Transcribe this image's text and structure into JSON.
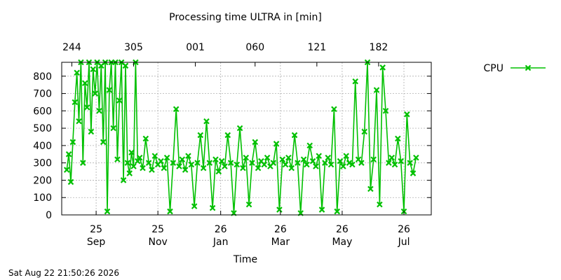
{
  "chart_data": {
    "type": "line",
    "title": "Processing time ULTRA in [min]",
    "xlabel": "Time",
    "ylabel": "",
    "ylim": [
      0,
      880
    ],
    "yticks": [
      0,
      100,
      200,
      300,
      400,
      500,
      600,
      700,
      800
    ],
    "grid": true,
    "legend_position": "top-right",
    "x_ticks_bottom": [
      {
        "date": "2025-09-25",
        "day": "25",
        "month": "Sep"
      },
      {
        "date": "2025-11-25",
        "day": "25",
        "month": "Nov"
      },
      {
        "date": "2026-01-26",
        "day": "26",
        "month": "Jan"
      },
      {
        "date": "2026-03-26",
        "day": "26",
        "month": "Mar"
      },
      {
        "date": "2026-05-26",
        "day": "26",
        "month": "May"
      },
      {
        "date": "2026-07-26",
        "day": "26",
        "month": "Jul"
      }
    ],
    "x_ticks_top": [
      {
        "date": "2025-09-01",
        "label": "244"
      },
      {
        "date": "2025-11-01",
        "label": "305"
      },
      {
        "date": "2026-01-01",
        "label": "001"
      },
      {
        "date": "2026-03-01",
        "label": "060"
      },
      {
        "date": "2026-05-01",
        "label": "121"
      },
      {
        "date": "2026-07-01",
        "label": "182"
      }
    ],
    "xlim": [
      "2025-08-22",
      "2026-08-22"
    ],
    "series": [
      {
        "name": "CPU",
        "color": "#00c000",
        "marker": "x",
        "points": [
          [
            "2025-08-27",
            260
          ],
          [
            "2025-08-29",
            350
          ],
          [
            "2025-08-31",
            190
          ],
          [
            "2025-09-02",
            420
          ],
          [
            "2025-09-04",
            650
          ],
          [
            "2025-09-06",
            820
          ],
          [
            "2025-09-08",
            540
          ],
          [
            "2025-09-10",
            880
          ],
          [
            "2025-09-12",
            300
          ],
          [
            "2025-09-14",
            760
          ],
          [
            "2025-09-16",
            620
          ],
          [
            "2025-09-18",
            880
          ],
          [
            "2025-09-20",
            480
          ],
          [
            "2025-09-22",
            840
          ],
          [
            "2025-09-24",
            700
          ],
          [
            "2025-09-26",
            880
          ],
          [
            "2025-09-28",
            600
          ],
          [
            "2025-09-30",
            860
          ],
          [
            "2025-10-02",
            420
          ],
          [
            "2025-10-04",
            880
          ],
          [
            "2025-10-06",
            20
          ],
          [
            "2025-10-08",
            720
          ],
          [
            "2025-10-10",
            880
          ],
          [
            "2025-10-12",
            500
          ],
          [
            "2025-10-14",
            880
          ],
          [
            "2025-10-16",
            320
          ],
          [
            "2025-10-18",
            660
          ],
          [
            "2025-10-20",
            880
          ],
          [
            "2025-10-22",
            200
          ],
          [
            "2025-10-24",
            860
          ],
          [
            "2025-10-26",
            300
          ],
          [
            "2025-10-28",
            240
          ],
          [
            "2025-10-30",
            360
          ],
          [
            "2025-11-01",
            280
          ],
          [
            "2025-11-03",
            880
          ],
          [
            "2025-11-05",
            310
          ],
          [
            "2025-11-07",
            330
          ],
          [
            "2025-11-10",
            270
          ],
          [
            "2025-11-13",
            440
          ],
          [
            "2025-11-16",
            300
          ],
          [
            "2025-11-19",
            260
          ],
          [
            "2025-11-22",
            340
          ],
          [
            "2025-11-25",
            290
          ],
          [
            "2025-11-28",
            310
          ],
          [
            "2025-12-01",
            270
          ],
          [
            "2025-12-04",
            330
          ],
          [
            "2025-12-07",
            20
          ],
          [
            "2025-12-10",
            300
          ],
          [
            "2025-12-13",
            610
          ],
          [
            "2025-12-16",
            280
          ],
          [
            "2025-12-19",
            320
          ],
          [
            "2025-12-22",
            260
          ],
          [
            "2025-12-25",
            340
          ],
          [
            "2025-12-28",
            290
          ],
          [
            "2025-12-31",
            50
          ],
          [
            "2026-01-03",
            300
          ],
          [
            "2026-01-06",
            460
          ],
          [
            "2026-01-09",
            270
          ],
          [
            "2026-01-12",
            540
          ],
          [
            "2026-01-15",
            300
          ],
          [
            "2026-01-18",
            40
          ],
          [
            "2026-01-21",
            320
          ],
          [
            "2026-01-24",
            250
          ],
          [
            "2026-01-27",
            310
          ],
          [
            "2026-01-30",
            280
          ],
          [
            "2026-02-02",
            460
          ],
          [
            "2026-02-05",
            300
          ],
          [
            "2026-02-08",
            10
          ],
          [
            "2026-02-11",
            290
          ],
          [
            "2026-02-14",
            500
          ],
          [
            "2026-02-17",
            270
          ],
          [
            "2026-02-20",
            330
          ],
          [
            "2026-02-23",
            60
          ],
          [
            "2026-02-26",
            300
          ],
          [
            "2026-03-01",
            420
          ],
          [
            "2026-03-04",
            270
          ],
          [
            "2026-03-07",
            310
          ],
          [
            "2026-03-10",
            290
          ],
          [
            "2026-03-13",
            330
          ],
          [
            "2026-03-16",
            280
          ],
          [
            "2026-03-19",
            300
          ],
          [
            "2026-03-22",
            410
          ],
          [
            "2026-03-25",
            30
          ],
          [
            "2026-03-28",
            320
          ],
          [
            "2026-03-31",
            290
          ],
          [
            "2026-04-03",
            330
          ],
          [
            "2026-04-06",
            270
          ],
          [
            "2026-04-09",
            460
          ],
          [
            "2026-04-12",
            300
          ],
          [
            "2026-04-15",
            10
          ],
          [
            "2026-04-18",
            320
          ],
          [
            "2026-04-21",
            290
          ],
          [
            "2026-04-24",
            400
          ],
          [
            "2026-04-27",
            310
          ],
          [
            "2026-04-30",
            280
          ],
          [
            "2026-05-03",
            340
          ],
          [
            "2026-05-06",
            30
          ],
          [
            "2026-05-09",
            300
          ],
          [
            "2026-05-12",
            330
          ],
          [
            "2026-05-15",
            290
          ],
          [
            "2026-05-18",
            610
          ],
          [
            "2026-05-21",
            20
          ],
          [
            "2026-05-24",
            310
          ],
          [
            "2026-05-27",
            280
          ],
          [
            "2026-05-30",
            340
          ],
          [
            "2026-06-02",
            300
          ],
          [
            "2026-06-05",
            290
          ],
          [
            "2026-06-08",
            770
          ],
          [
            "2026-06-11",
            320
          ],
          [
            "2026-06-14",
            300
          ],
          [
            "2026-06-17",
            480
          ],
          [
            "2026-06-20",
            880
          ],
          [
            "2026-06-23",
            150
          ],
          [
            "2026-06-26",
            320
          ],
          [
            "2026-06-29",
            720
          ],
          [
            "2026-07-02",
            60
          ],
          [
            "2026-07-05",
            850
          ],
          [
            "2026-07-08",
            600
          ],
          [
            "2026-07-11",
            300
          ],
          [
            "2026-07-14",
            330
          ],
          [
            "2026-07-17",
            290
          ],
          [
            "2026-07-20",
            440
          ],
          [
            "2026-07-23",
            310
          ],
          [
            "2026-07-26",
            20
          ],
          [
            "2026-07-29",
            580
          ],
          [
            "2026-08-01",
            300
          ],
          [
            "2026-08-04",
            240
          ],
          [
            "2026-08-07",
            330
          ]
        ]
      }
    ]
  },
  "footer": {
    "timestamp": "Sat Aug 22 21:50:26 2026"
  }
}
